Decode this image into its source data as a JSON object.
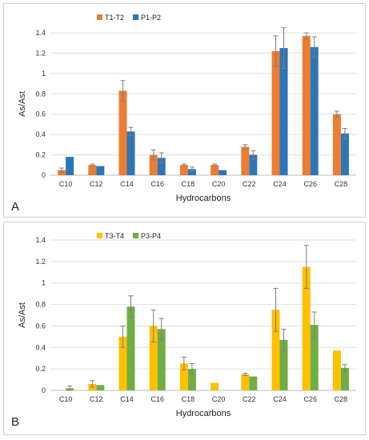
{
  "chart_data": [
    {
      "type": "bar",
      "panel_label": "A",
      "categories": [
        "C10",
        "C12",
        "C14",
        "C16",
        "C18",
        "C20",
        "C22",
        "C24",
        "C26",
        "C28"
      ],
      "series": [
        {
          "name": "T1-T2",
          "color": "#ed7d31",
          "values": [
            0.05,
            0.1,
            0.83,
            0.2,
            0.1,
            0.1,
            0.28,
            1.22,
            1.37,
            0.6
          ],
          "errors": [
            0.02,
            0.01,
            0.1,
            0.05,
            0.01,
            0.01,
            0.02,
            0.15,
            0.03,
            0.03
          ]
        },
        {
          "name": "P1-P2",
          "color": "#2e75b6",
          "values": [
            0.18,
            0.09,
            0.43,
            0.17,
            0.06,
            0.05,
            0.2,
            1.25,
            1.26,
            0.41
          ],
          "errors": [
            0.0,
            0.0,
            0.04,
            0.05,
            0.02,
            0.0,
            0.04,
            0.2,
            0.1,
            0.05
          ]
        }
      ],
      "xlabel": "Hydrocarbons",
      "ylabel": "As/Ast",
      "ylim": [
        0,
        1.4
      ],
      "yticks": [
        "0",
        "0.2",
        "0.4",
        "0.6",
        "0.8",
        "1",
        "1.2",
        "1.4"
      ],
      "grid": true,
      "legend": "top-left"
    },
    {
      "type": "bar",
      "panel_label": "B",
      "categories": [
        "C10",
        "C12",
        "C14",
        "C16",
        "C18",
        "C20",
        "C22",
        "C24",
        "C26",
        "C28"
      ],
      "series": [
        {
          "name": "T3-T4",
          "color": "#ffc000",
          "values": [
            0.0,
            0.06,
            0.5,
            0.6,
            0.25,
            0.07,
            0.15,
            0.75,
            1.15,
            0.37
          ],
          "errors": [
            0.0,
            0.03,
            0.1,
            0.15,
            0.06,
            0.0,
            0.01,
            0.2,
            0.2,
            0.0
          ]
        },
        {
          "name": "P3-P4",
          "color": "#70ad47",
          "values": [
            0.02,
            0.05,
            0.78,
            0.57,
            0.2,
            0.0,
            0.13,
            0.47,
            0.61,
            0.21
          ],
          "errors": [
            0.02,
            0.0,
            0.1,
            0.1,
            0.05,
            0.0,
            0.0,
            0.1,
            0.12,
            0.03
          ]
        }
      ],
      "xlabel": "Hydrocarbons",
      "ylabel": "As/Ast",
      "ylim": [
        0,
        1.4
      ],
      "yticks": [
        "0",
        "0.2",
        "0.4",
        "0.6",
        "0.8",
        "1",
        "1.2",
        "1.4"
      ],
      "grid": true,
      "legend": "top-left"
    }
  ]
}
